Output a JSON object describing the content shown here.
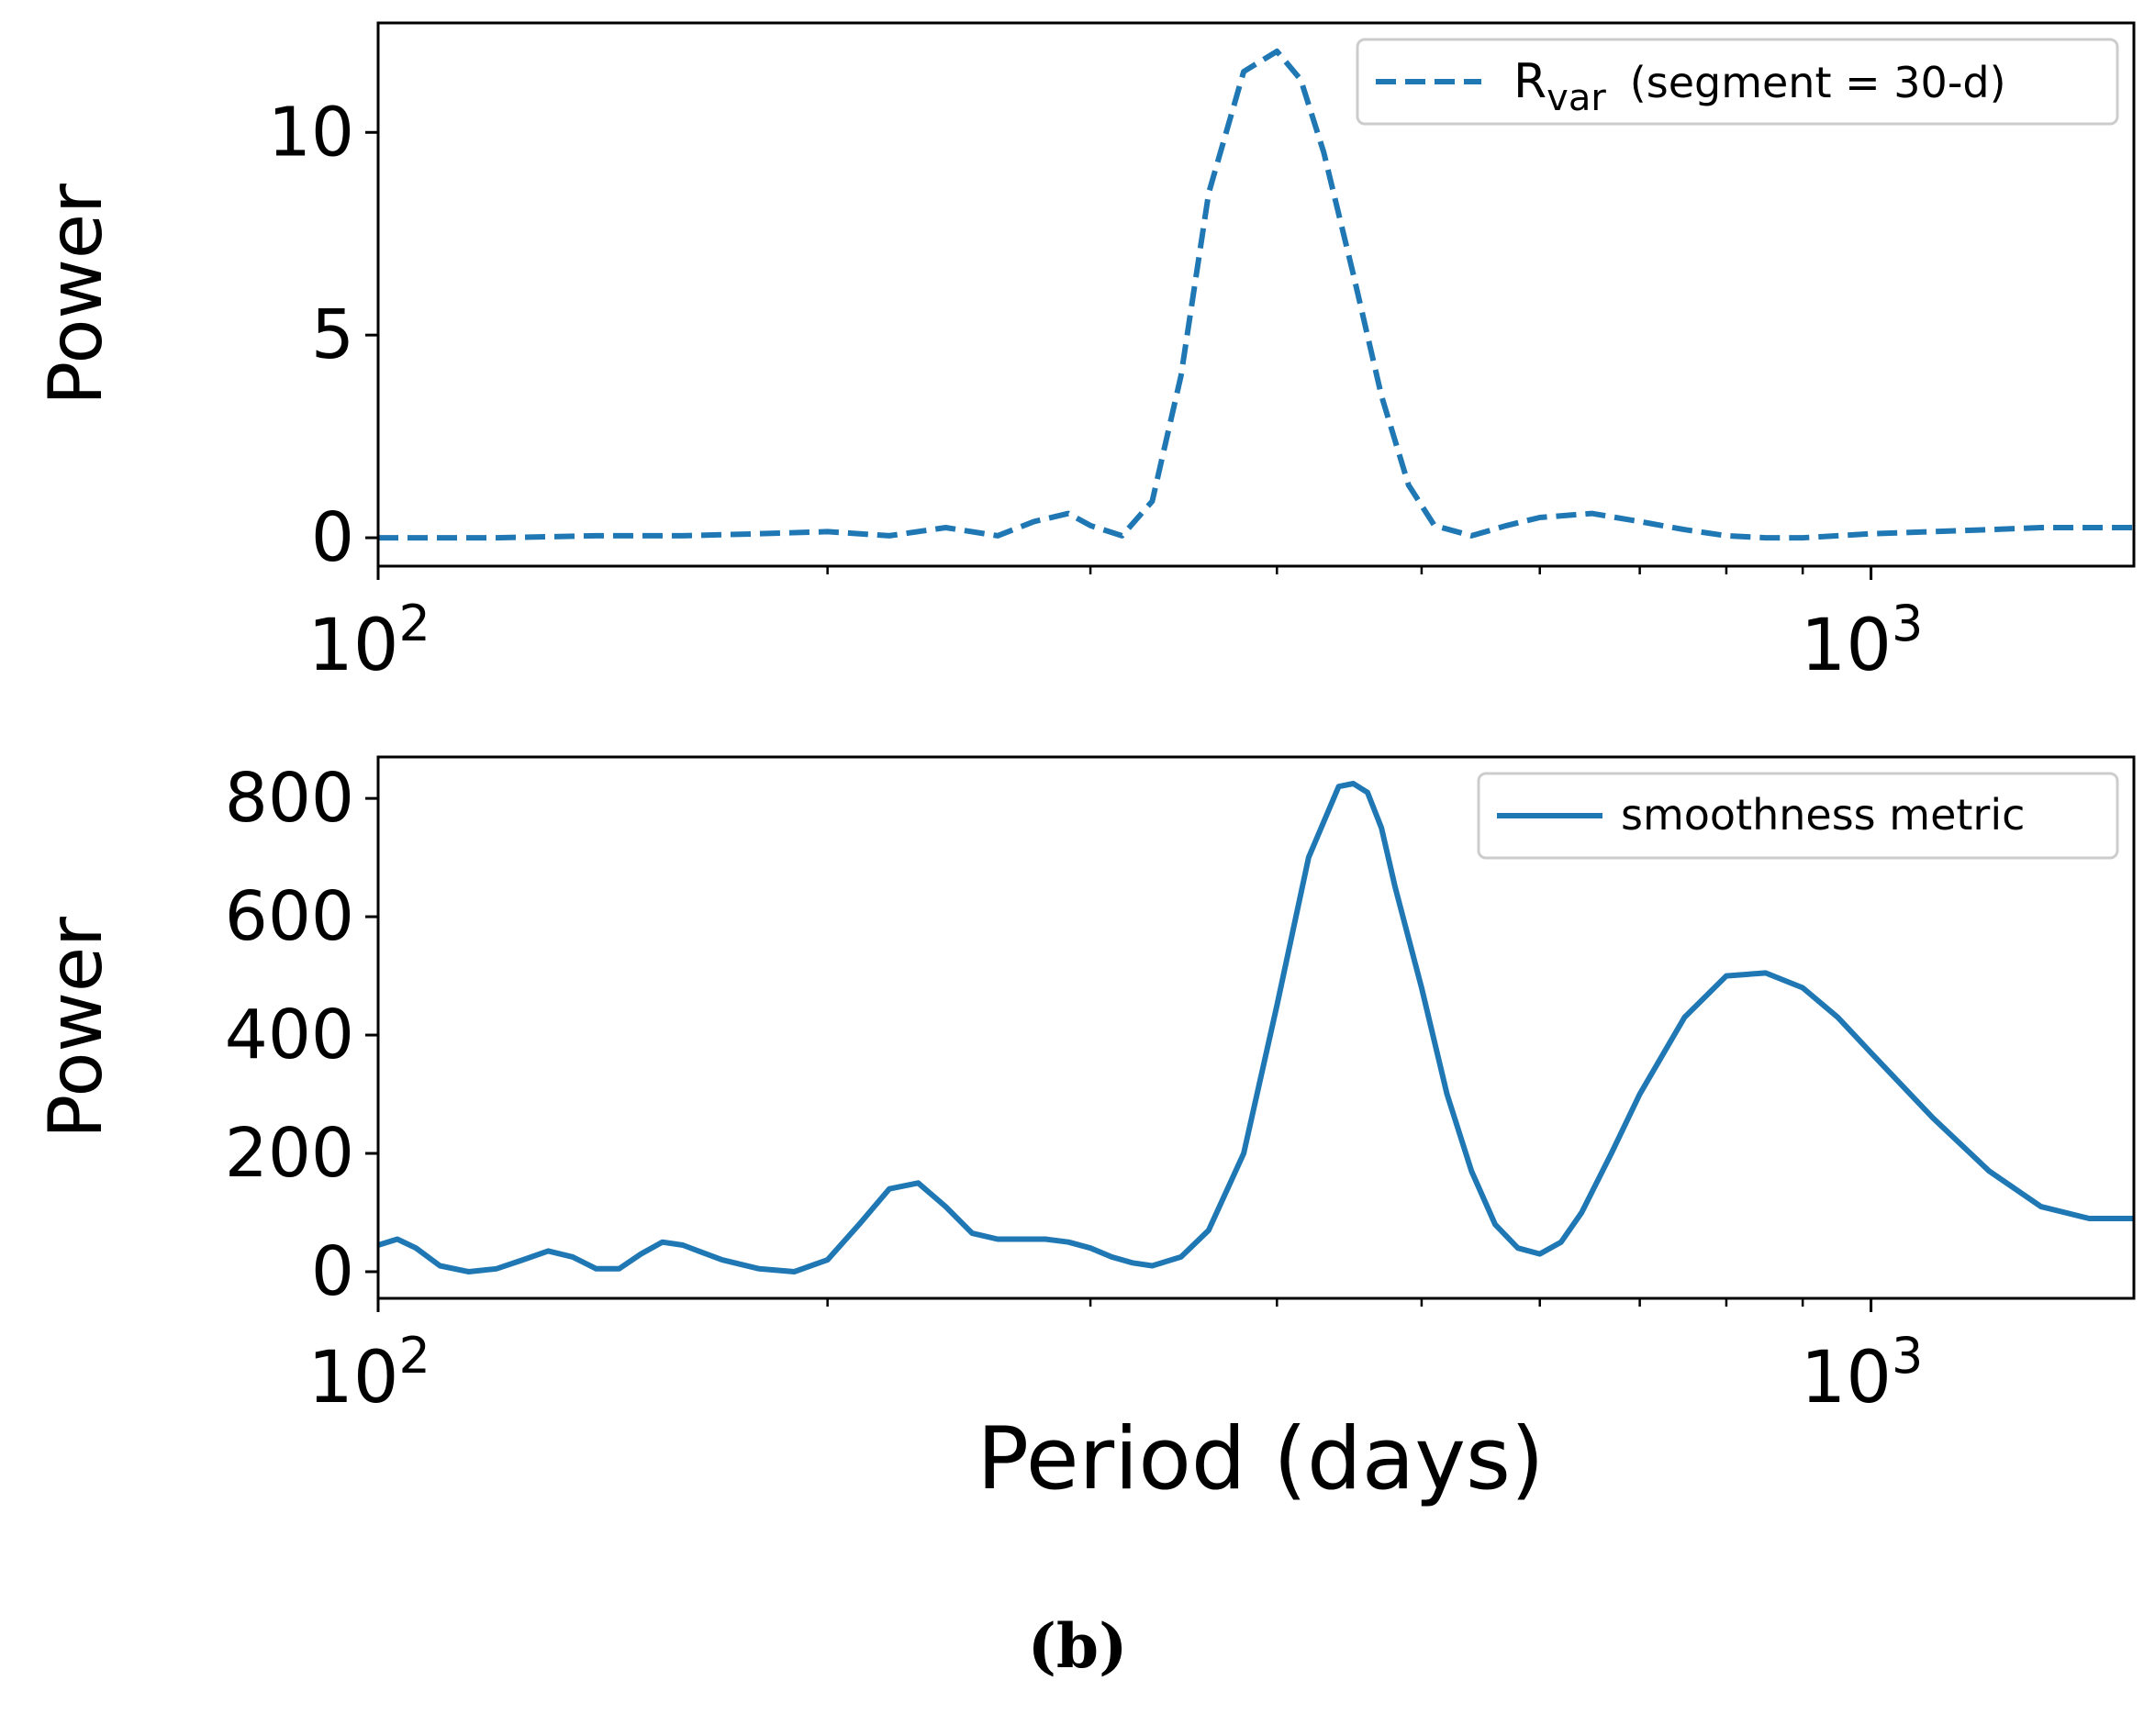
{
  "chart_data": [
    {
      "type": "line",
      "id": "top",
      "xscale": "log",
      "xlim": [
        100,
        1500
      ],
      "ylim": [
        -0.7,
        12.7
      ],
      "ylabel": "Power",
      "xlabel": "",
      "yticks": [
        0,
        5,
        10
      ],
      "ytick_labels": [
        "0",
        "5",
        "10"
      ],
      "xticks_major": [
        100,
        1000
      ],
      "xtick_labels": [
        {
          "base": "10",
          "exp": "2"
        },
        {
          "base": "10",
          "exp": "3"
        }
      ],
      "legend": {
        "location": "top-right",
        "label_main": "R",
        "label_sub": "var",
        "label_rest": "(segment = 30-d)",
        "linestyle": "dashed"
      },
      "color": "#1f77b4",
      "series": [
        {
          "name": "Rvar (segment = 30-d)",
          "x": [
            100,
            120,
            140,
            160,
            180,
            200,
            220,
            240,
            260,
            275,
            290,
            300,
            315,
            330,
            345,
            360,
            380,
            400,
            415,
            430,
            450,
            470,
            490,
            510,
            540,
            570,
            600,
            650,
            700,
            750,
            800,
            850,
            900,
            950,
            1000,
            1100,
            1200,
            1300,
            1400,
            1500
          ],
          "y": [
            0.0,
            0.0,
            0.05,
            0.05,
            0.1,
            0.15,
            0.05,
            0.25,
            0.05,
            0.4,
            0.6,
            0.3,
            0.05,
            0.9,
            4.0,
            8.5,
            11.5,
            12.0,
            11.3,
            9.5,
            6.5,
            3.5,
            1.3,
            0.3,
            0.05,
            0.3,
            0.5,
            0.6,
            0.4,
            0.2,
            0.05,
            0.0,
            0.0,
            0.05,
            0.1,
            0.15,
            0.2,
            0.25,
            0.25,
            0.25
          ]
        }
      ]
    },
    {
      "type": "line",
      "id": "bottom",
      "xscale": "log",
      "xlim": [
        100,
        1500
      ],
      "ylim": [
        -45,
        870
      ],
      "ylabel": "Power",
      "xlabel": "Period (days)",
      "yticks": [
        0,
        200,
        400,
        600,
        800
      ],
      "ytick_labels": [
        "0",
        "200",
        "400",
        "600",
        "800"
      ],
      "xticks_major": [
        100,
        1000
      ],
      "xtick_labels": [
        {
          "base": "10",
          "exp": "2"
        },
        {
          "base": "10",
          "exp": "3"
        }
      ],
      "legend": {
        "location": "top-right",
        "label": "smoothness metric",
        "linestyle": "solid"
      },
      "color": "#1f77b4",
      "series": [
        {
          "name": "smoothness metric",
          "x": [
            100,
            103,
            106,
            110,
            115,
            120,
            125,
            130,
            135,
            140,
            145,
            150,
            155,
            160,
            170,
            180,
            190,
            200,
            210,
            220,
            230,
            240,
            250,
            260,
            270,
            280,
            290,
            300,
            310,
            320,
            330,
            345,
            360,
            380,
            400,
            420,
            440,
            450,
            460,
            470,
            480,
            500,
            520,
            540,
            560,
            580,
            600,
            620,
            640,
            670,
            700,
            750,
            800,
            850,
            900,
            950,
            1000,
            1100,
            1200,
            1300,
            1400,
            1500
          ],
          "y": [
            45,
            55,
            40,
            10,
            0,
            5,
            20,
            35,
            25,
            5,
            5,
            30,
            50,
            45,
            20,
            5,
            0,
            20,
            80,
            140,
            150,
            110,
            65,
            55,
            55,
            55,
            50,
            40,
            25,
            15,
            10,
            25,
            70,
            200,
            450,
            700,
            820,
            825,
            810,
            750,
            650,
            480,
            300,
            170,
            80,
            40,
            30,
            50,
            100,
            200,
            300,
            430,
            500,
            505,
            480,
            430,
            370,
            260,
            170,
            110,
            90,
            90
          ]
        }
      ]
    }
  ],
  "caption": "(b)"
}
